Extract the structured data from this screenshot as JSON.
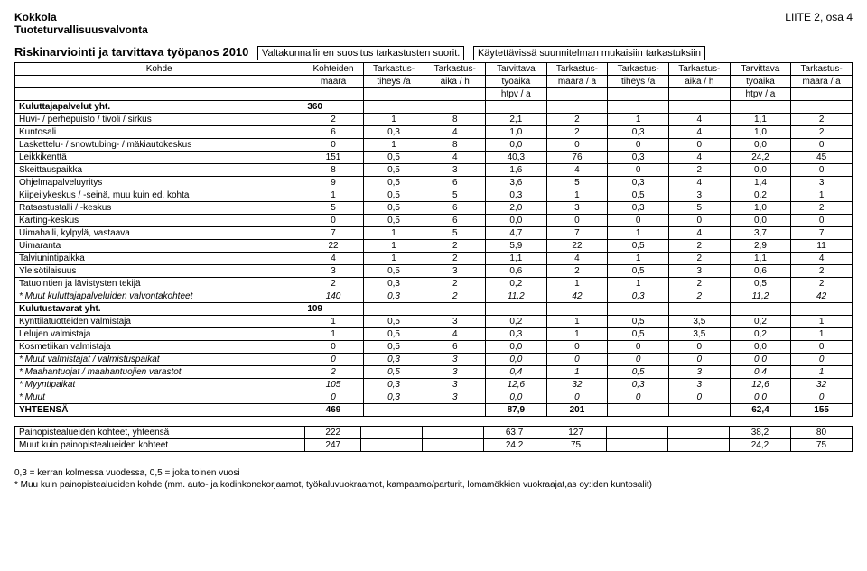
{
  "header": {
    "org": "Kokkola",
    "dept": "Tuoteturvallisuusvalvonta",
    "appendix": "LIITE 2, osa 4"
  },
  "title": {
    "main": "Riskinarviointi ja tarvittava työpanos 2010",
    "box1": "Valtakunnallinen suositus tarkastusten suorit.",
    "box2": "Käytettävissä suunnitelman mukaisiin tarkastuksiin"
  },
  "thead": {
    "r1": [
      "Kohde",
      "Kohteiden",
      "Tarkastus-",
      "Tarkastus-",
      "Tarvittava",
      "Tarkastus-",
      "Tarkastus-",
      "Tarkastus-",
      "Tarvittava",
      "Tarkastus-"
    ],
    "r2": [
      "",
      "määrä",
      "tiheys /a",
      "aika / h",
      "työaika",
      "määrä / a",
      "tiheys /a",
      "aika / h",
      "työaika",
      "määrä / a"
    ],
    "r3": [
      "",
      "",
      "",
      "",
      "htpv / a",
      "",
      "",
      "",
      "htpv / a",
      ""
    ]
  },
  "sections": [
    {
      "heading": {
        "label": "Kuluttajapalvelut yht.",
        "count": "360"
      },
      "rows": [
        {
          "label": "Huvi- / perhepuisto / tivoli / sirkus",
          "c": [
            "2",
            "1",
            "8",
            "2,1",
            "2",
            "1",
            "4",
            "1,1",
            "2"
          ]
        },
        {
          "label": "Kuntosali",
          "c": [
            "6",
            "0,3",
            "4",
            "1,0",
            "2",
            "0,3",
            "4",
            "1,0",
            "2"
          ]
        },
        {
          "label": "Laskettelu- / snowtubing- / mäkiautokeskus",
          "c": [
            "0",
            "1",
            "8",
            "0,0",
            "0",
            "0",
            "0",
            "0,0",
            "0"
          ]
        },
        {
          "label": "Leikkikenttä",
          "c": [
            "151",
            "0,5",
            "4",
            "40,3",
            "76",
            "0,3",
            "4",
            "24,2",
            "45"
          ]
        },
        {
          "label": "Skeittauspaikka",
          "c": [
            "8",
            "0,5",
            "3",
            "1,6",
            "4",
            "0",
            "2",
            "0,0",
            "0"
          ]
        },
        {
          "label": "Ohjelmapalveluyritys",
          "c": [
            "9",
            "0,5",
            "6",
            "3,6",
            "5",
            "0,3",
            "4",
            "1,4",
            "3"
          ]
        },
        {
          "label": "Kiipeilykeskus / -seinä, muu kuin ed. kohta",
          "c": [
            "1",
            "0,5",
            "5",
            "0,3",
            "1",
            "0,5",
            "3",
            "0,2",
            "1"
          ]
        },
        {
          "label": "Ratsastustalli / -keskus",
          "c": [
            "5",
            "0,5",
            "6",
            "2,0",
            "3",
            "0,3",
            "5",
            "1,0",
            "2"
          ]
        },
        {
          "label": "Karting-keskus",
          "c": [
            "0",
            "0,5",
            "6",
            "0,0",
            "0",
            "0",
            "0",
            "0,0",
            "0"
          ]
        },
        {
          "label": "Uimahalli, kylpylä, vastaava",
          "c": [
            "7",
            "1",
            "5",
            "4,7",
            "7",
            "1",
            "4",
            "3,7",
            "7"
          ]
        },
        {
          "label": "Uimaranta",
          "c": [
            "22",
            "1",
            "2",
            "5,9",
            "22",
            "0,5",
            "2",
            "2,9",
            "11"
          ]
        },
        {
          "label": "Talviunintipaikka",
          "c": [
            "4",
            "1",
            "2",
            "1,1",
            "4",
            "1",
            "2",
            "1,1",
            "4"
          ]
        },
        {
          "label": "Yleisötilaisuus",
          "c": [
            "3",
            "0,5",
            "3",
            "0,6",
            "2",
            "0,5",
            "3",
            "0,6",
            "2"
          ]
        },
        {
          "label": "Tatuointien ja lävistysten tekijä",
          "c": [
            "2",
            "0,3",
            "2",
            "0,2",
            "1",
            "1",
            "2",
            "0,5",
            "2"
          ]
        },
        {
          "label": "* Muut kuluttajapalveluiden valvontakohteet",
          "c": [
            "140",
            "0,3",
            "2",
            "11,2",
            "42",
            "0,3",
            "2",
            "11,2",
            "42"
          ],
          "italic": true
        }
      ]
    },
    {
      "heading": {
        "label": "Kulutustavarat yht.",
        "count": "109"
      },
      "rows": [
        {
          "label": "Kynttilätuotteiden valmistaja",
          "c": [
            "1",
            "0,5",
            "3",
            "0,2",
            "1",
            "0,5",
            "3,5",
            "0,2",
            "1"
          ]
        },
        {
          "label": "Lelujen valmistaja",
          "c": [
            "1",
            "0,5",
            "4",
            "0,3",
            "1",
            "0,5",
            "3,5",
            "0,2",
            "1"
          ]
        },
        {
          "label": "Kosmetiikan valmistaja",
          "c": [
            "0",
            "0,5",
            "6",
            "0,0",
            "0",
            "0",
            "0",
            "0,0",
            "0"
          ]
        },
        {
          "label": "* Muut valmistajat / valmistuspaikat",
          "c": [
            "0",
            "0,3",
            "3",
            "0,0",
            "0",
            "0",
            "0",
            "0,0",
            "0"
          ],
          "italic": true
        },
        {
          "label": "* Maahantuojat / maahantuojien varastot",
          "c": [
            "2",
            "0,5",
            "3",
            "0,4",
            "1",
            "0,5",
            "3",
            "0,4",
            "1"
          ],
          "italic": true
        },
        {
          "label": "* Myyntipaikat",
          "c": [
            "105",
            "0,3",
            "3",
            "12,6",
            "32",
            "0,3",
            "3",
            "12,6",
            "32"
          ],
          "italic": true
        },
        {
          "label": "* Muut",
          "c": [
            "0",
            "0,3",
            "3",
            "0,0",
            "0",
            "0",
            "0",
            "0,0",
            "0"
          ],
          "italic": true
        }
      ]
    }
  ],
  "total": {
    "label": "YHTEENSÄ",
    "c": [
      "469",
      "",
      "",
      "87,9",
      "201",
      "",
      "",
      "62,4",
      "155"
    ]
  },
  "summary": [
    {
      "label": "Painopistealueiden kohteet, yhteensä",
      "c": [
        "222",
        "",
        "",
        "63,7",
        "127",
        "",
        "",
        "38,2",
        "80"
      ]
    },
    {
      "label": "Muut kuin painopistealueiden kohteet",
      "c": [
        "247",
        "",
        "",
        "24,2",
        "75",
        "",
        "",
        "24,2",
        "75"
      ]
    }
  ],
  "footnotes": {
    "l1": "0,3 = kerran kolmessa vuodessa, 0,5 = joka toinen vuosi",
    "l2": "* Muu kuin painopistealueiden kohde (mm. auto- ja kodinkonekorjaamot, työkaluvuokraamot, kampaamo/parturit, lomamökkien vuokraajat,as oy:iden kuntosalit)"
  },
  "colwidths": [
    "260",
    "50",
    "55",
    "55",
    "55",
    "55",
    "55",
    "55",
    "55",
    "55"
  ]
}
